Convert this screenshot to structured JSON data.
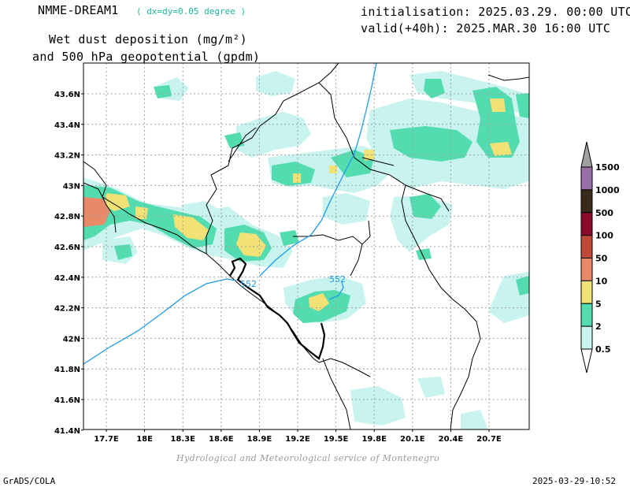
{
  "header": {
    "model": "NMME-DREAM1",
    "resolution": "( dx=dy=0.05 degree )",
    "title_line1": "Wet dust deposition (mg/m²)",
    "title_line2": "and 500 hPa geopotential (gpdm)",
    "init": "initialisation: 2025.03.29. 00:00 UTC",
    "valid": "valid(+40h): 2025.MAR.30 16:00 UTC"
  },
  "map": {
    "lat_labels": [
      "43.6N",
      "43.4N",
      "43.2N",
      "43N",
      "42.8N",
      "42.6N",
      "42.4N",
      "42.2N",
      "42N",
      "41.8N",
      "41.6N",
      "41.4N"
    ],
    "lon_labels": [
      "17.7E",
      "18E",
      "18.3E",
      "18.6E",
      "18.9E",
      "19.2E",
      "19.5E",
      "19.8E",
      "20.1E",
      "20.4E",
      "20.7E"
    ],
    "contour_labels": [
      "552",
      "552"
    ],
    "contour_color": "#1e9be8",
    "grid": true
  },
  "colorbar": {
    "levels": [
      "1500",
      "1000",
      "500",
      "100",
      "50",
      "10",
      "5",
      "2",
      "0.5"
    ],
    "colors": [
      "#9a6fa8",
      "#3a2a1a",
      "#8a0a2a",
      "#c04a3a",
      "#e88a68",
      "#f2e276",
      "#52dcb0",
      "#c9f3ee"
    ],
    "top_arrow_color": "#a0a0a0"
  },
  "footer": {
    "credit": "Hydrological and Meteorological service of Montenegro",
    "left": "GrADS/COLA",
    "right": "2025-03-29-10:52"
  }
}
